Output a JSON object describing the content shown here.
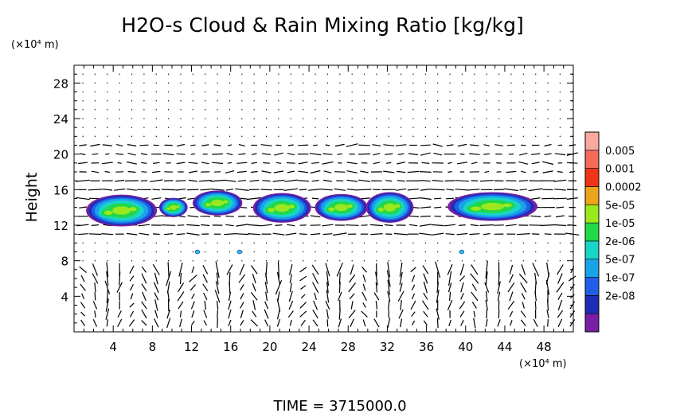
{
  "chart_data": {
    "type": "heatmap",
    "title": "H2O-s Cloud & Rain Mixing Ratio [kg/kg]",
    "xlabel": "",
    "ylabel": "Height",
    "x_unit": "(×10⁴ m)",
    "y_unit": "(×10⁴ m)",
    "xlim": [
      0,
      51
    ],
    "ylim": [
      0,
      30
    ],
    "x_ticks": [
      4,
      8,
      12,
      16,
      20,
      24,
      28,
      32,
      36,
      40,
      44,
      48
    ],
    "y_ticks": [
      4,
      8,
      12,
      16,
      20,
      24,
      28
    ],
    "grid": false,
    "colorbar": {
      "labels": [
        "0.005",
        "0.001",
        "0.0002",
        "5e-05",
        "1e-05",
        "2e-06",
        "5e-07",
        "1e-07",
        "2e-08"
      ],
      "colors": [
        "#7a1fa2",
        "#1f2bb5",
        "#1f5fe6",
        "#1ba3e8",
        "#18d6c7",
        "#22d84a",
        "#9be81f",
        "#eaa51a",
        "#f03417",
        "#f7695a",
        "#f9a9a0"
      ]
    },
    "cloud_blobs": [
      {
        "x": [
          1.5,
          8.2
        ],
        "y": [
          12.0,
          15.3
        ],
        "level": "1e-05"
      },
      {
        "x": [
          8.8,
          11.5
        ],
        "y": [
          13.0,
          15.0
        ],
        "level": "2e-06"
      },
      {
        "x": [
          12.3,
          17.0
        ],
        "y": [
          13.2,
          15.8
        ],
        "level": "1e-05"
      },
      {
        "x": [
          18.5,
          24.0
        ],
        "y": [
          12.4,
          15.5
        ],
        "level": "1e-05"
      },
      {
        "x": [
          24.8,
          29.8
        ],
        "y": [
          12.6,
          15.4
        ],
        "level": "5e-05"
      },
      {
        "x": [
          30.0,
          34.5
        ],
        "y": [
          12.4,
          15.6
        ],
        "level": "5e-05"
      },
      {
        "x": [
          38.5,
          47.0
        ],
        "y": [
          12.6,
          15.6
        ],
        "level": "1e-05"
      },
      {
        "x": [
          12.6,
          12.6
        ],
        "y": [
          9.0,
          9.0
        ],
        "level": "2e-06"
      },
      {
        "x": [
          16.9,
          16.9
        ],
        "y": [
          9.0,
          9.0
        ],
        "level": "2e-06"
      },
      {
        "x": [
          39.6,
          39.6
        ],
        "y": [
          9.0,
          9.0
        ],
        "level": "2e-06"
      }
    ]
  },
  "footer": {
    "time_label": "TIME  =  3715000.0"
  }
}
